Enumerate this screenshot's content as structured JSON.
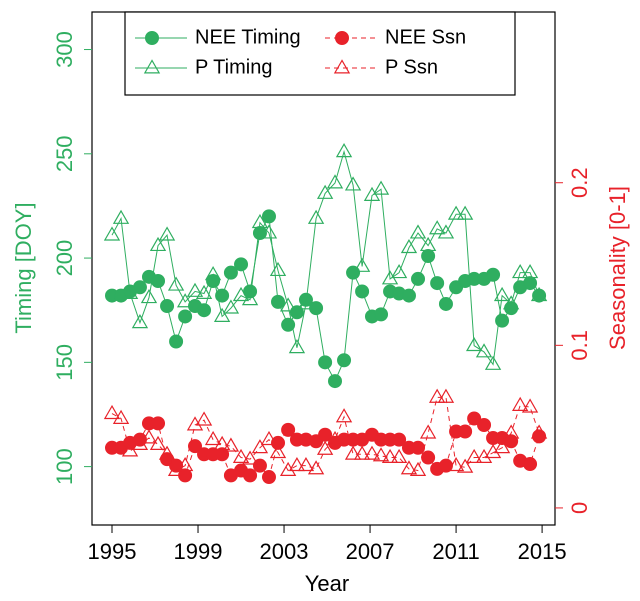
{
  "chart_data": {
    "type": "line",
    "xlabel": "Year",
    "ylabel": "Timing [DOY]",
    "y2label": "Seasonality [0-1]",
    "ylabel_color": "#2fae60",
    "y2label_color": "#e8222a",
    "x": [
      1995,
      1995.42,
      1995.84,
      1996.3,
      1996.72,
      1997.14,
      1997.56,
      1997.98,
      1998.4,
      1998.86,
      1999.28,
      1999.7,
      2000.12,
      2000.53,
      2001.0,
      2001.42,
      2001.88,
      2002.3,
      2002.72,
      2003.19,
      2003.6,
      2004.02,
      2004.49,
      2004.91,
      2005.37,
      2005.79,
      2006.21,
      2006.63,
      2007.09,
      2007.51,
      2007.93,
      2008.35,
      2008.81,
      2009.23,
      2009.7,
      2010.12,
      2010.53,
      2011.0,
      2011.42,
      2011.84,
      2012.3,
      2012.72,
      2013.14,
      2013.56,
      2013.98,
      2014.44,
      2014.86
    ],
    "xlim": [
      1994.07,
      2015.6
    ],
    "xticks": [
      1995,
      1999,
      2003,
      2007,
      2011,
      2015
    ],
    "ylim": [
      72,
      318
    ],
    "yticks": [
      100,
      150,
      200,
      250,
      300
    ],
    "y2lim": [
      -0.0105,
      0.305
    ],
    "y2ticks": [
      0,
      0.1,
      0.2
    ],
    "legend": "top",
    "series": [
      {
        "name": "NEE Timing",
        "color": "#2fae60",
        "marker": "circle",
        "filled": true,
        "dashed": false,
        "axis": "y",
        "values": [
          182,
          182,
          184,
          186,
          191,
          189,
          177,
          160,
          172,
          177,
          175,
          189,
          182,
          193,
          197,
          184,
          212,
          220,
          179,
          168,
          174,
          180,
          176,
          150,
          141,
          151,
          193,
          184,
          172,
          173,
          184,
          183,
          182,
          190,
          201,
          188,
          178,
          186,
          189,
          190,
          190,
          192,
          170,
          176,
          186,
          188,
          182
        ]
      },
      {
        "name": "P Timing",
        "color": "#2fae60",
        "marker": "triangle",
        "filled": false,
        "dashed": false,
        "axis": "y",
        "values": [
          211,
          219,
          183,
          169,
          181,
          206,
          211,
          187,
          179,
          184,
          183,
          192,
          172,
          176,
          182,
          180,
          217,
          212,
          194,
          177,
          157,
          178,
          219,
          231,
          236,
          251,
          235,
          196,
          230,
          233,
          190,
          193,
          205,
          212,
          206,
          214,
          212,
          221,
          221,
          158,
          155,
          149,
          182,
          178,
          193,
          193,
          182
        ]
      },
      {
        "name": "NEE Ssn",
        "color": "#e8222a",
        "marker": "circle",
        "filled": true,
        "dashed": true,
        "axis": "y2",
        "values": [
          0.037,
          0.037,
          0.04,
          0.042,
          0.052,
          0.052,
          0.03,
          0.026,
          0.02,
          0.038,
          0.033,
          0.033,
          0.033,
          0.02,
          0.023,
          0.02,
          0.026,
          0.019,
          0.04,
          0.048,
          0.042,
          0.042,
          0.041,
          0.045,
          0.04,
          0.042,
          0.042,
          0.042,
          0.045,
          0.042,
          0.042,
          0.042,
          0.037,
          0.037,
          0.031,
          0.024,
          0.026,
          0.047,
          0.047,
          0.055,
          0.051,
          0.043,
          0.043,
          0.041,
          0.029,
          0.027,
          0.044
        ]
      },
      {
        "name": "P Ssn",
        "color": "#e8222a",
        "marker": "triangle",
        "filled": false,
        "dashed": true,
        "axis": "y2",
        "values": [
          0.058,
          0.055,
          0.035,
          0.039,
          0.043,
          0.039,
          0.033,
          0.023,
          0.026,
          0.051,
          0.054,
          0.042,
          0.039,
          0.038,
          0.031,
          0.03,
          0.037,
          0.042,
          0.034,
          0.023,
          0.026,
          0.026,
          0.024,
          0.036,
          0.042,
          0.056,
          0.033,
          0.033,
          0.033,
          0.032,
          0.031,
          0.031,
          0.024,
          0.023,
          0.046,
          0.068,
          0.068,
          0.026,
          0.025,
          0.031,
          0.031,
          0.034,
          0.037,
          0.046,
          0.063,
          0.062,
          0.046
        ]
      }
    ]
  }
}
